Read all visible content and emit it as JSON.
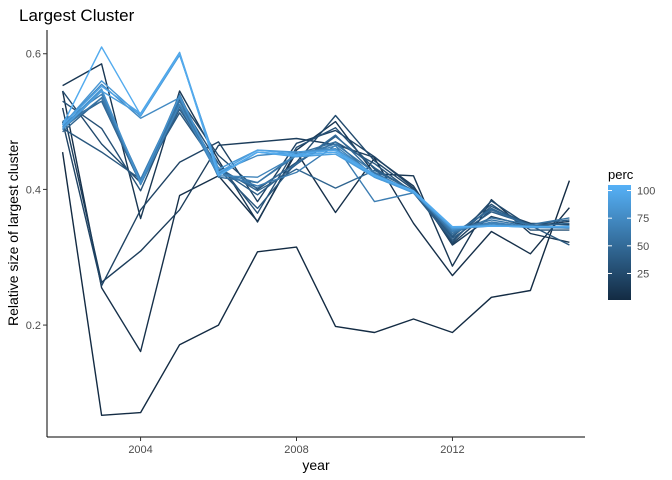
{
  "chart_data": {
    "type": "line",
    "title": "Largest Cluster",
    "xlabel": "year",
    "ylabel": "Relative size of largest cluster",
    "xlim": [
      2001.6,
      2015.4
    ],
    "ylim": [
      0.035,
      0.635
    ],
    "x_ticks": [
      2004,
      2008,
      2012
    ],
    "x_tick_labels": [
      "2004",
      "2008",
      "2012"
    ],
    "y_ticks": [
      0.2,
      0.4,
      0.6
    ],
    "y_tick_labels": [
      "0.2",
      "0.4",
      "0.6"
    ],
    "grid": false,
    "x": [
      2002,
      2003,
      2004,
      2005,
      2006,
      2007,
      2008,
      2009,
      2010,
      2011,
      2012,
      2013,
      2014,
      2015
    ],
    "legend": {
      "title": "perc",
      "placement": "right",
      "type": "colorbar",
      "low_color": "#132B43",
      "high_color": "#56B1F7",
      "range": [
        1,
        105
      ],
      "breaks": [
        25,
        50,
        75,
        100
      ],
      "break_labels": [
        "25",
        "50",
        "75",
        "100"
      ]
    },
    "series": [
      {
        "perc": 1,
        "values": [
          0.455,
          0.067,
          0.071,
          0.171,
          0.2,
          0.308,
          0.315,
          0.198,
          0.189,
          0.209,
          0.189,
          0.241,
          0.251,
          0.413
        ]
      },
      {
        "perc": 5,
        "values": [
          0.545,
          0.255,
          0.161,
          0.391,
          0.42,
          0.353,
          0.455,
          0.366,
          0.446,
          0.35,
          0.273,
          0.338,
          0.305,
          0.373
        ]
      },
      {
        "perc": 10,
        "values": [
          0.553,
          0.585,
          0.357,
          0.545,
          0.443,
          0.352,
          0.458,
          0.5,
          0.423,
          0.42,
          0.287,
          0.385,
          0.335,
          0.322
        ]
      },
      {
        "perc": 15,
        "values": [
          0.52,
          0.263,
          0.309,
          0.37,
          0.465,
          0.47,
          0.475,
          0.466,
          0.447,
          0.405,
          0.318,
          0.36,
          0.345,
          0.353
        ]
      },
      {
        "perc": 20,
        "values": [
          0.5,
          0.258,
          0.37,
          0.44,
          0.47,
          0.382,
          0.468,
          0.487,
          0.448,
          0.402,
          0.32,
          0.37,
          0.35,
          0.348
        ]
      },
      {
        "perc": 25,
        "values": [
          0.545,
          0.467,
          0.41,
          0.533,
          0.45,
          0.4,
          0.44,
          0.509,
          0.442,
          0.4,
          0.322,
          0.383,
          0.345,
          0.345
        ]
      },
      {
        "perc": 30,
        "values": [
          0.53,
          0.49,
          0.398,
          0.53,
          0.438,
          0.365,
          0.462,
          0.491,
          0.43,
          0.398,
          0.33,
          0.378,
          0.34,
          0.34
        ]
      },
      {
        "perc": 35,
        "values": [
          0.49,
          0.455,
          0.415,
          0.513,
          0.43,
          0.372,
          0.44,
          0.47,
          0.438,
          0.395,
          0.325,
          0.375,
          0.347,
          0.318
        ]
      },
      {
        "perc": 40,
        "values": [
          0.495,
          0.53,
          0.408,
          0.518,
          0.43,
          0.392,
          0.437,
          0.478,
          0.432,
          0.395,
          0.328,
          0.367,
          0.348,
          0.355
        ]
      },
      {
        "perc": 45,
        "values": [
          0.485,
          0.535,
          0.41,
          0.525,
          0.432,
          0.398,
          0.43,
          0.402,
          0.428,
          0.398,
          0.332,
          0.372,
          0.346,
          0.35
        ]
      },
      {
        "perc": 50,
        "values": [
          0.498,
          0.53,
          0.412,
          0.522,
          0.427,
          0.402,
          0.438,
          0.48,
          0.423,
          0.395,
          0.335,
          0.37,
          0.346,
          0.345
        ]
      },
      {
        "perc": 55,
        "values": [
          0.492,
          0.545,
          0.408,
          0.54,
          0.418,
          0.41,
          0.452,
          0.47,
          0.418,
          0.398,
          0.335,
          0.358,
          0.348,
          0.358
        ]
      },
      {
        "perc": 60,
        "values": [
          0.49,
          0.535,
          0.412,
          0.53,
          0.425,
          0.41,
          0.45,
          0.467,
          0.425,
          0.395,
          0.338,
          0.355,
          0.345,
          0.343
        ]
      },
      {
        "perc": 65,
        "values": [
          0.5,
          0.54,
          0.415,
          0.535,
          0.425,
          0.405,
          0.425,
          0.465,
          0.382,
          0.395,
          0.338,
          0.352,
          0.344,
          0.343
        ]
      },
      {
        "perc": 70,
        "values": [
          0.488,
          0.545,
          0.407,
          0.525,
          0.42,
          0.418,
          0.45,
          0.464,
          0.42,
          0.398,
          0.34,
          0.35,
          0.344,
          0.346
        ]
      },
      {
        "perc": 75,
        "values": [
          0.495,
          0.555,
          0.505,
          0.535,
          0.425,
          0.45,
          0.455,
          0.46,
          0.422,
          0.398,
          0.342,
          0.348,
          0.344,
          0.344
        ]
      },
      {
        "perc": 80,
        "values": [
          0.492,
          0.548,
          0.41,
          0.538,
          0.42,
          0.455,
          0.45,
          0.455,
          0.418,
          0.395,
          0.342,
          0.346,
          0.346,
          0.344
        ]
      },
      {
        "perc": 85,
        "values": [
          0.495,
          0.56,
          0.508,
          0.598,
          0.43,
          0.458,
          0.455,
          0.458,
          0.42,
          0.395,
          0.342,
          0.347,
          0.344,
          0.345
        ]
      },
      {
        "perc": 90,
        "values": [
          0.49,
          0.545,
          0.51,
          0.6,
          0.422,
          0.455,
          0.448,
          0.452,
          0.418,
          0.395,
          0.344,
          0.346,
          0.345,
          0.345
        ]
      },
      {
        "perc": 95,
        "values": [
          0.495,
          0.552,
          0.512,
          0.602,
          0.425,
          0.458,
          0.452,
          0.458,
          0.422,
          0.396,
          0.344,
          0.346,
          0.345,
          0.345
        ]
      },
      {
        "perc": 100,
        "values": [
          0.495,
          0.61,
          0.51,
          0.6,
          0.42,
          0.455,
          0.45,
          0.455,
          0.42,
          0.398,
          0.345,
          0.346,
          0.345,
          0.345
        ]
      }
    ]
  }
}
